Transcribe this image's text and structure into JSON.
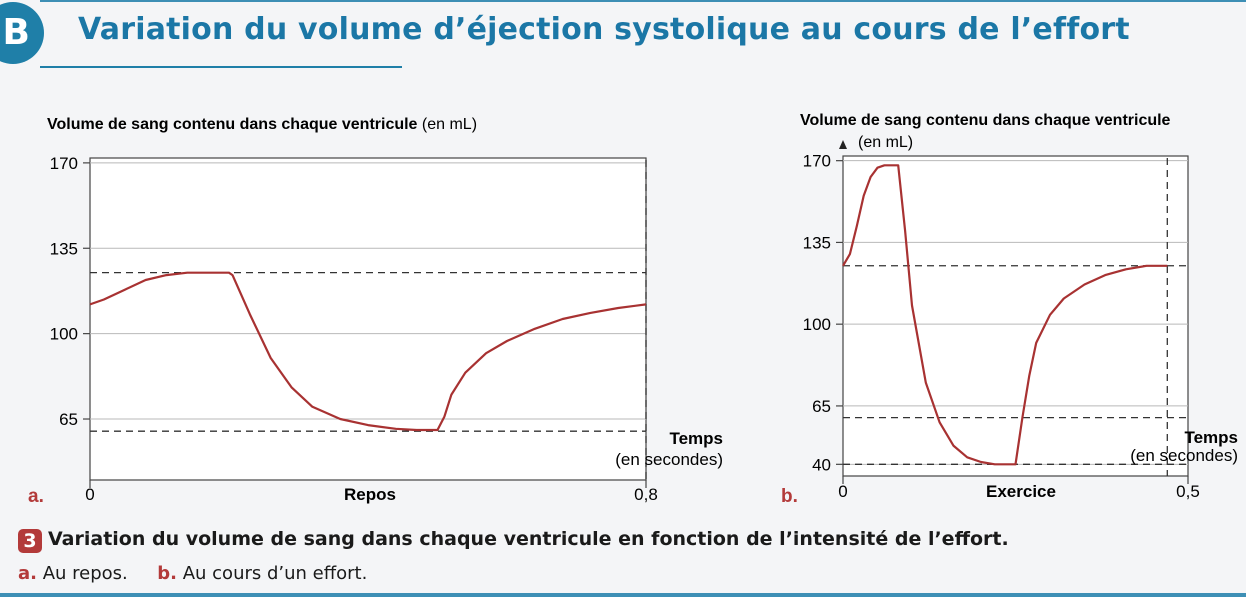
{
  "section": {
    "badge": "B",
    "title": "Variation du volume d’éjection systolique au cours de l’effort"
  },
  "chart_data": [
    {
      "type": "line",
      "panel_label": "a.",
      "ylabel_bold": "Volume de sang contenu dans chaque ventricule",
      "ylabel_unit": "(en mL)",
      "xlabel_line1": "Temps",
      "xlabel_line2": "(en secondes)",
      "xcaption": "Repos",
      "xlim": [
        0,
        0.8
      ],
      "ylim": [
        40,
        172
      ],
      "yticks": [
        170,
        135,
        100,
        65
      ],
      "ytick_labels": [
        "170",
        "135",
        "100",
        "65"
      ],
      "xtick_labels": [
        "0",
        "0,8"
      ],
      "dashed_levels": [
        125,
        60
      ],
      "series": [
        {
          "x": [
            0,
            0.02,
            0.05,
            0.08,
            0.11,
            0.14,
            0.17,
            0.2,
            0.205,
            0.23,
            0.26,
            0.29,
            0.32,
            0.36,
            0.4,
            0.44,
            0.47,
            0.5,
            0.51,
            0.52,
            0.54,
            0.57,
            0.6,
            0.64,
            0.68,
            0.72,
            0.76,
            0.8
          ],
          "y": [
            112,
            114,
            118,
            122,
            124,
            125,
            125,
            125,
            124,
            108,
            90,
            78,
            70,
            65,
            62.5,
            61,
            60.5,
            60.5,
            66,
            75,
            84,
            92,
            97,
            102,
            106,
            108.5,
            110.5,
            112
          ]
        }
      ]
    },
    {
      "type": "line",
      "panel_label": "b.",
      "ylabel_bold": "Volume de sang contenu dans chaque ventricule",
      "ylabel_unit": "(en mL)",
      "xlabel_line1": "Temps",
      "xlabel_line2": "(en secondes)",
      "xcaption": "Exercice",
      "xlim": [
        0,
        0.5
      ],
      "ylim": [
        35,
        172
      ],
      "yticks": [
        170,
        135,
        100,
        65,
        40
      ],
      "ytick_labels": [
        "170",
        "135",
        "100",
        "65",
        "40"
      ],
      "xtick_labels": [
        "0",
        "0,5"
      ],
      "dashed_levels": [
        125,
        60,
        40
      ],
      "series": [
        {
          "x": [
            0,
            0.01,
            0.02,
            0.03,
            0.04,
            0.05,
            0.06,
            0.07,
            0.08,
            0.09,
            0.1,
            0.12,
            0.14,
            0.16,
            0.18,
            0.2,
            0.22,
            0.25,
            0.26,
            0.27,
            0.28,
            0.3,
            0.32,
            0.35,
            0.38,
            0.41,
            0.44,
            0.47
          ],
          "y": [
            125,
            130,
            142,
            155,
            163,
            167,
            168,
            168,
            168,
            140,
            108,
            75,
            58,
            48,
            43,
            41,
            40,
            40,
            60,
            78,
            92,
            104,
            111,
            117,
            121,
            123.5,
            125,
            125
          ]
        }
      ]
    }
  ],
  "caption": {
    "number": "3",
    "text": "Variation du volume de sang dans chaque ventricule en fonction de l’intensité de l’effort.",
    "a_key": "a.",
    "a_text": "Au repos.",
    "b_key": "b.",
    "b_text": "Au cours d’un effort."
  },
  "colors": {
    "curve": "#a83232",
    "accent": "#1f7fa8",
    "panel_label": "#b33a3a"
  }
}
